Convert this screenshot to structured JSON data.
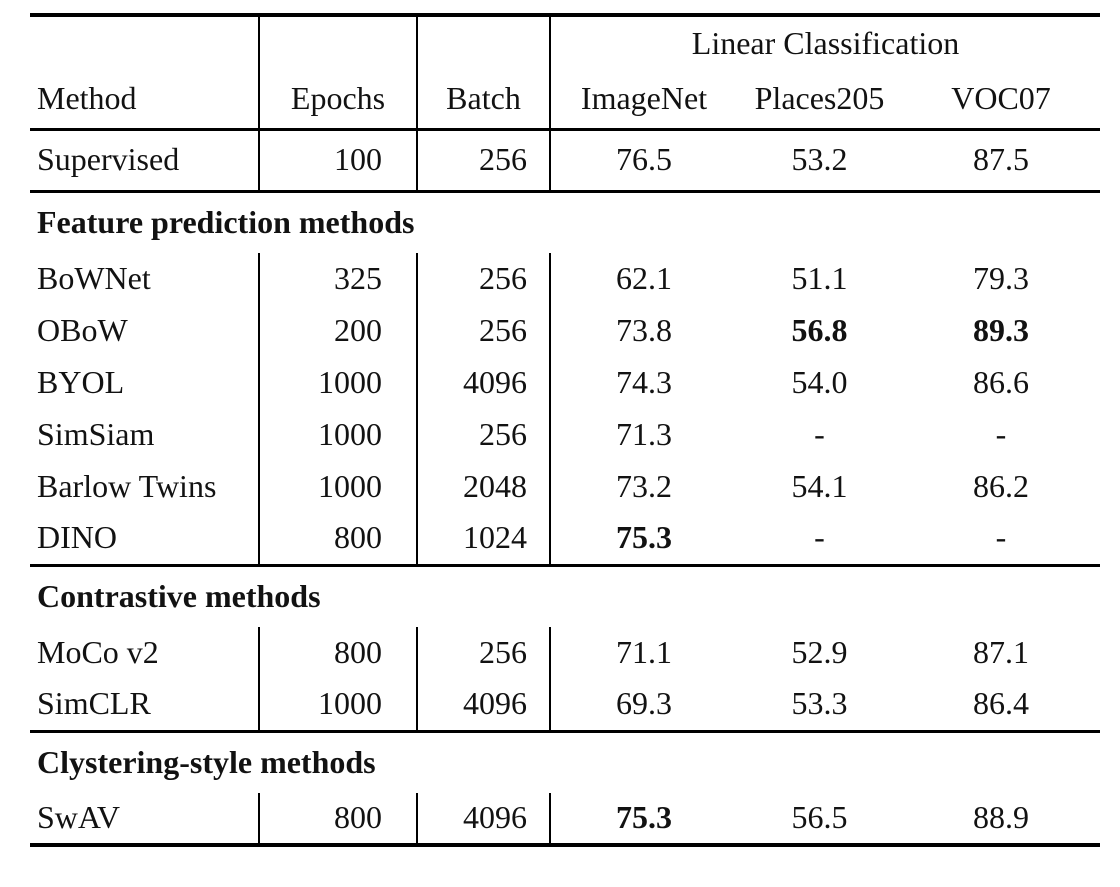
{
  "table": {
    "group_header": "Linear Classification",
    "headers": {
      "method": "Method",
      "epochs": "Epochs",
      "batch": "Batch",
      "imagenet": "ImageNet",
      "places205": "Places205",
      "voc07": "VOC07"
    },
    "supervised_row": {
      "method": "Supervised",
      "epochs": "100",
      "batch": "256",
      "imagenet": "76.5",
      "places205": "53.2",
      "voc07": "87.5"
    },
    "sections": [
      {
        "title": "Feature prediction methods",
        "rows": [
          {
            "method": "BoWNet",
            "epochs": "325",
            "batch": "256",
            "imagenet": "62.1",
            "places205": "51.1",
            "voc07": "79.3"
          },
          {
            "method": "OBoW",
            "epochs": "200",
            "batch": "256",
            "imagenet": "73.8",
            "places205": "56.8",
            "voc07": "89.3"
          },
          {
            "method": "BYOL",
            "epochs": "1000",
            "batch": "4096",
            "imagenet": "74.3",
            "places205": "54.0",
            "voc07": "86.6"
          },
          {
            "method": "SimSiam",
            "epochs": "1000",
            "batch": "256",
            "imagenet": "71.3",
            "places205": "-",
            "voc07": "-"
          },
          {
            "method": "Barlow Twins",
            "epochs": "1000",
            "batch": "2048",
            "imagenet": "73.2",
            "places205": "54.1",
            "voc07": "86.2"
          },
          {
            "method": "DINO",
            "epochs": "800",
            "batch": "1024",
            "imagenet": "75.3",
            "places205": "-",
            "voc07": "-"
          }
        ]
      },
      {
        "title": "Contrastive methods",
        "rows": [
          {
            "method": "MoCo v2",
            "epochs": "800",
            "batch": "256",
            "imagenet": "71.1",
            "places205": "52.9",
            "voc07": "87.1"
          },
          {
            "method": "SimCLR",
            "epochs": "1000",
            "batch": "4096",
            "imagenet": "69.3",
            "places205": "53.3",
            "voc07": "86.4"
          }
        ]
      },
      {
        "title": "Clystering-style methods",
        "rows": [
          {
            "method": "SwAV",
            "epochs": "800",
            "batch": "4096",
            "imagenet": "75.3",
            "places205": "56.5",
            "voc07": "88.9"
          }
        ]
      }
    ],
    "colors": {
      "text": "#121212",
      "rule": "#000000",
      "background": "#ffffff"
    }
  }
}
